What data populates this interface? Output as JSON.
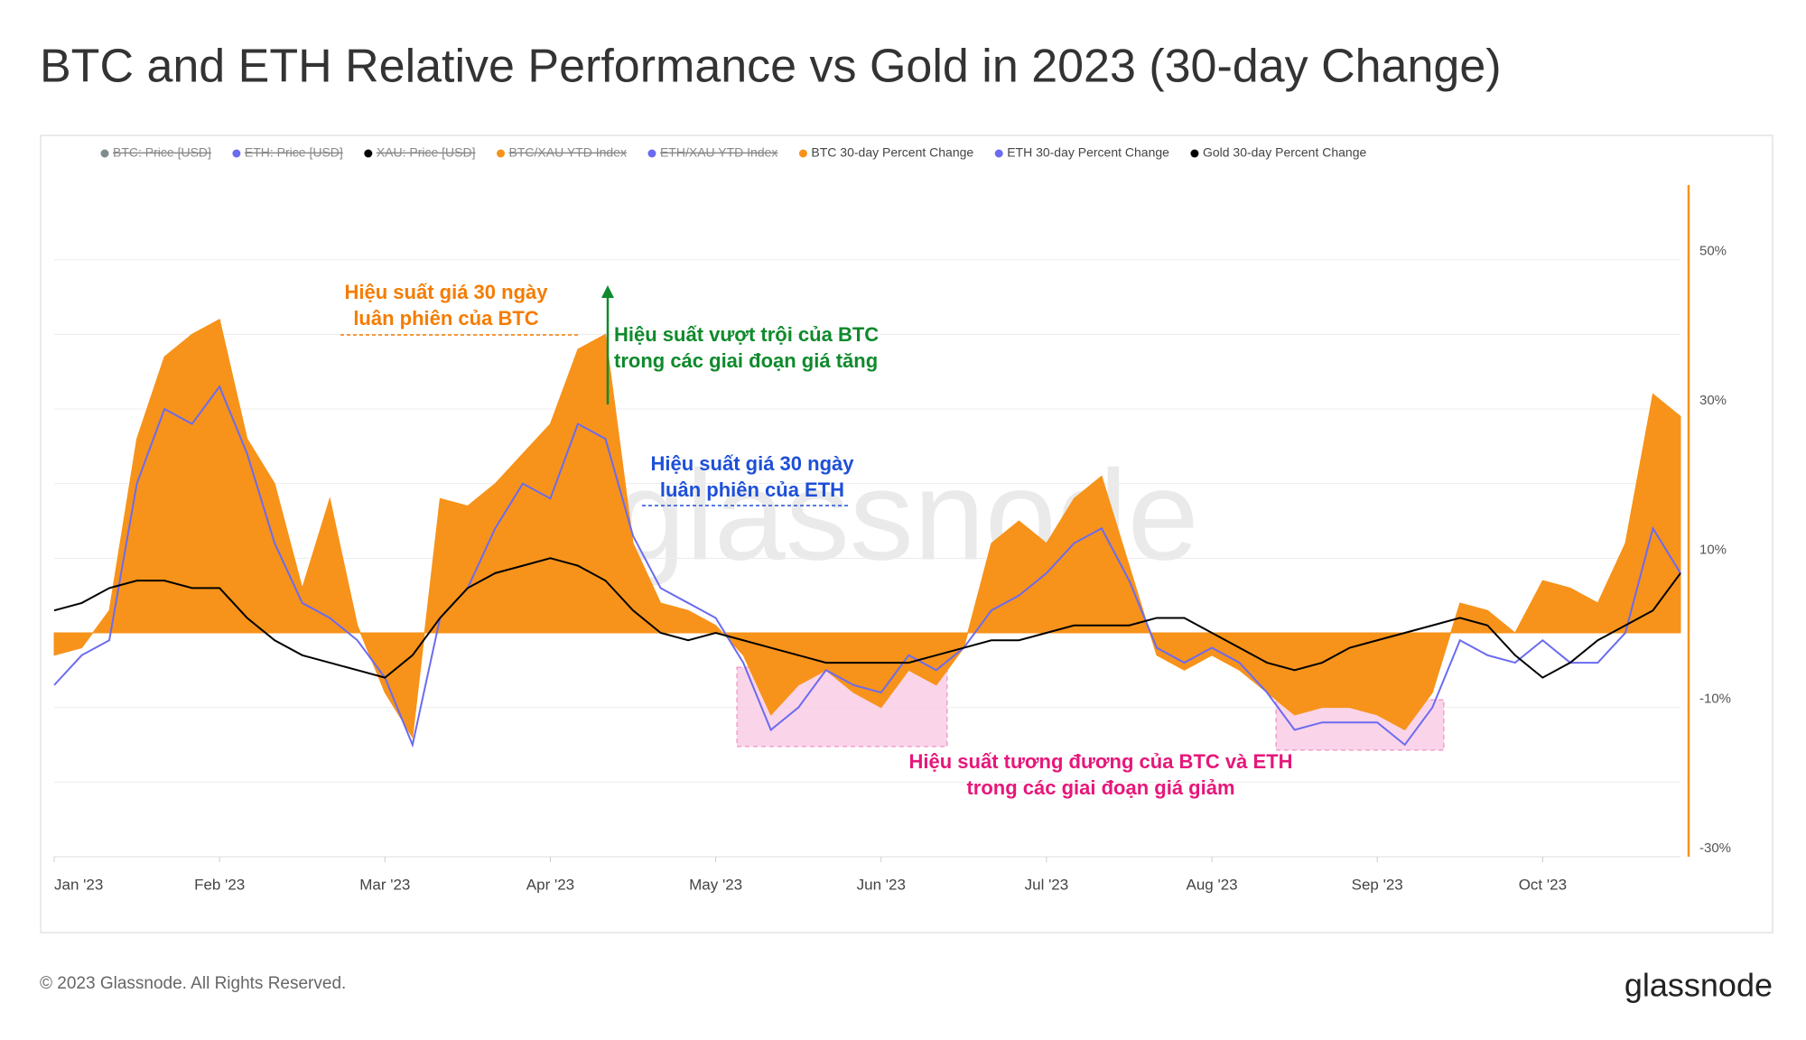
{
  "chart_data": {
    "type": "area-line",
    "title": "BTC and ETH Relative Performance vs Gold in 2023 (30-day Change)",
    "watermark": "glassnode",
    "categories": [
      "Jan '23",
      null,
      null,
      null,
      null,
      null,
      "Feb '23",
      null,
      null,
      null,
      null,
      null,
      "Mar '23",
      null,
      null,
      null,
      null,
      null,
      "Apr '23",
      null,
      null,
      null,
      null,
      null,
      "May '23",
      null,
      null,
      null,
      null,
      null,
      "Jun '23",
      null,
      null,
      null,
      null,
      null,
      "Jul '23",
      null,
      null,
      null,
      null,
      null,
      "Aug '23",
      null,
      null,
      null,
      null,
      null,
      "Sep '23",
      null,
      null,
      null,
      null,
      null,
      "Oct '23",
      null,
      null,
      null,
      null,
      null
    ],
    "series": [
      {
        "name": "BTC: Price [USD]",
        "color": "#7f8c8d",
        "visible": false
      },
      {
        "name": "ETH: Price [USD]",
        "color": "#6b6bf0",
        "visible": false
      },
      {
        "name": "XAU: Price [USD]",
        "color": "#000000",
        "visible": false
      },
      {
        "name": "BTC/XAU YTD Index",
        "color": "#f7931a",
        "visible": false
      },
      {
        "name": "ETH/XAU YTD Index",
        "color": "#6b6bf0",
        "visible": false
      },
      {
        "name": "BTC 30-day Percent Change",
        "color": "#f7931a",
        "visible": true,
        "style": "area",
        "values": [
          -3,
          -2,
          3,
          26,
          37,
          40,
          42,
          26,
          20,
          6,
          18,
          1,
          -8,
          -14,
          18,
          17,
          20,
          24,
          28,
          38,
          40,
          12,
          4,
          3,
          1,
          -3,
          -11,
          -7,
          -5,
          -8,
          -10,
          -5,
          -7,
          -2,
          12,
          15,
          12,
          18,
          21,
          9,
          -3,
          -5,
          -3,
          -5,
          -8,
          -11,
          -10,
          -10,
          -11,
          -13,
          -8,
          4,
          3,
          0,
          7,
          6,
          4,
          12,
          32,
          29
        ]
      },
      {
        "name": "ETH 30-day Percent Change",
        "color": "#6b6bf0",
        "visible": true,
        "style": "line",
        "values": [
          -7,
          -3,
          -1,
          20,
          30,
          28,
          33,
          24,
          12,
          4,
          2,
          -1,
          -6,
          -15,
          2,
          6,
          14,
          20,
          18,
          28,
          26,
          13,
          6,
          4,
          2,
          -4,
          -13,
          -10,
          -5,
          -7,
          -8,
          -3,
          -5,
          -2,
          3,
          5,
          8,
          12,
          14,
          7,
          -2,
          -4,
          -2,
          -4,
          -8,
          -13,
          -12,
          -12,
          -12,
          -15,
          -10,
          -1,
          -3,
          -4,
          -1,
          -4,
          -4,
          0,
          14,
          8
        ]
      },
      {
        "name": "Gold 30-day Percent Change",
        "color": "#000000",
        "visible": true,
        "style": "line",
        "values": [
          3,
          4,
          6,
          7,
          7,
          6,
          6,
          2,
          -1,
          -3,
          -4,
          -5,
          -6,
          -3,
          2,
          6,
          8,
          9,
          10,
          9,
          7,
          3,
          0,
          -1,
          0,
          -1,
          -2,
          -3,
          -4,
          -4,
          -4,
          -4,
          -3,
          -2,
          -1,
          -1,
          0,
          1,
          1,
          1,
          2,
          2,
          0,
          -2,
          -4,
          -5,
          -4,
          -2,
          -1,
          0,
          1,
          2,
          1,
          -3,
          -6,
          -4,
          -1,
          1,
          3,
          8
        ]
      }
    ],
    "ylim": [
      -30,
      60
    ],
    "yticks": [
      {
        "value": 50,
        "label": "50%"
      },
      {
        "value": 30,
        "label": "30%"
      },
      {
        "value": 10,
        "label": "10%"
      },
      {
        "value": -10,
        "label": "-10%"
      },
      {
        "value": -30,
        "label": "-30%"
      }
    ],
    "minor_yticks": [
      -20,
      0,
      20,
      40
    ],
    "grid": true,
    "annotations": [
      {
        "lines": [
          "Hiệu suất giá 30 ngày",
          "luân phiên của BTC"
        ],
        "color": "#f57c00"
      },
      {
        "lines": [
          "Hiệu suất vượt trội của BTC",
          "trong các giai đoạn giá tăng"
        ],
        "color": "#0f8a2c"
      },
      {
        "lines": [
          "Hiệu suất giá 30 ngày",
          "luân phiên của ETH"
        ],
        "color": "#1d4fd8"
      },
      {
        "lines": [
          "Hiệu suất tương đương của BTC và ETH",
          "trong các giai đoạn giá giảm"
        ],
        "color": "#e6177a"
      }
    ]
  },
  "footer": {
    "copyright": "© 2023 Glassnode. All Rights Reserved.",
    "logo": "glassnode"
  }
}
